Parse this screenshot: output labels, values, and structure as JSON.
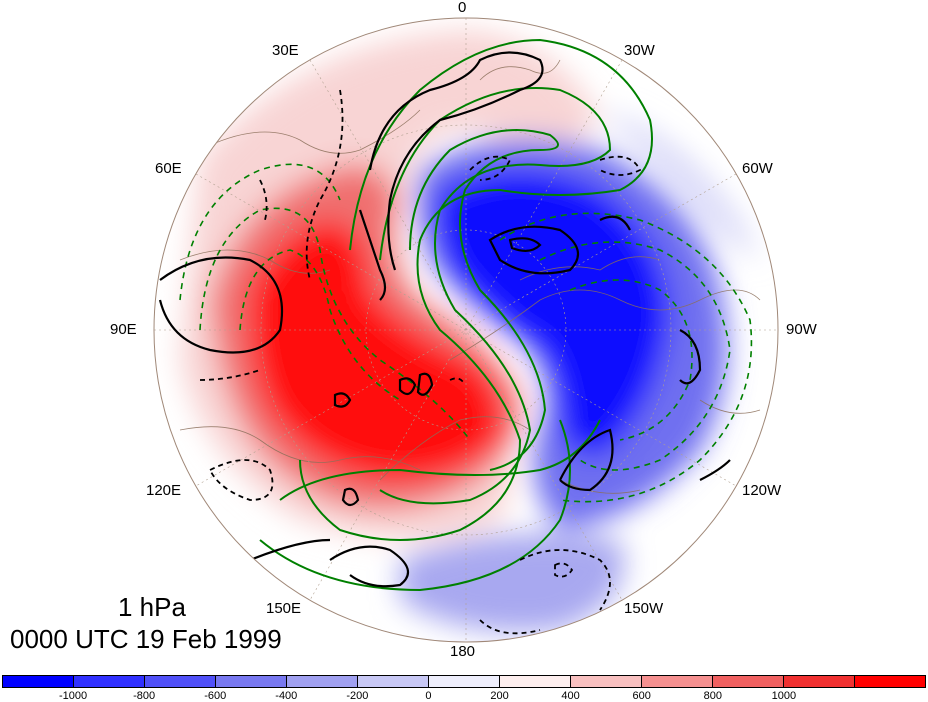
{
  "map": {
    "projection": "north-polar-stereographic",
    "longitude_labels": [
      "0",
      "30W",
      "60W",
      "90W",
      "120W",
      "150W",
      "180",
      "150E",
      "120E",
      "90E",
      "60E",
      "30E"
    ],
    "fill_field_colors": {
      "strong_positive": "#ff0000",
      "strong_negative": "#0000ff",
      "zero": "#ffffff"
    },
    "contour_colors": {
      "black": "#000000",
      "green": "#008000",
      "coastlines": "#8b6f5a"
    }
  },
  "title": {
    "level": "1 hPa",
    "time": "0000 UTC 19 Feb 1999"
  },
  "colorbar": {
    "colors": [
      "#0000ff",
      "#3030ff",
      "#5050f8",
      "#7878f0",
      "#a0a0f0",
      "#c8c8f5",
      "#eeeefc",
      "#fdeeee",
      "#f8c0c0",
      "#f59090",
      "#f06060",
      "#f03030",
      "#ff0000"
    ],
    "tick_labels": [
      "-1000",
      "-800",
      "-600",
      "-400",
      "-200",
      "0",
      "200",
      "400",
      "600",
      "800",
      "1000"
    ]
  }
}
